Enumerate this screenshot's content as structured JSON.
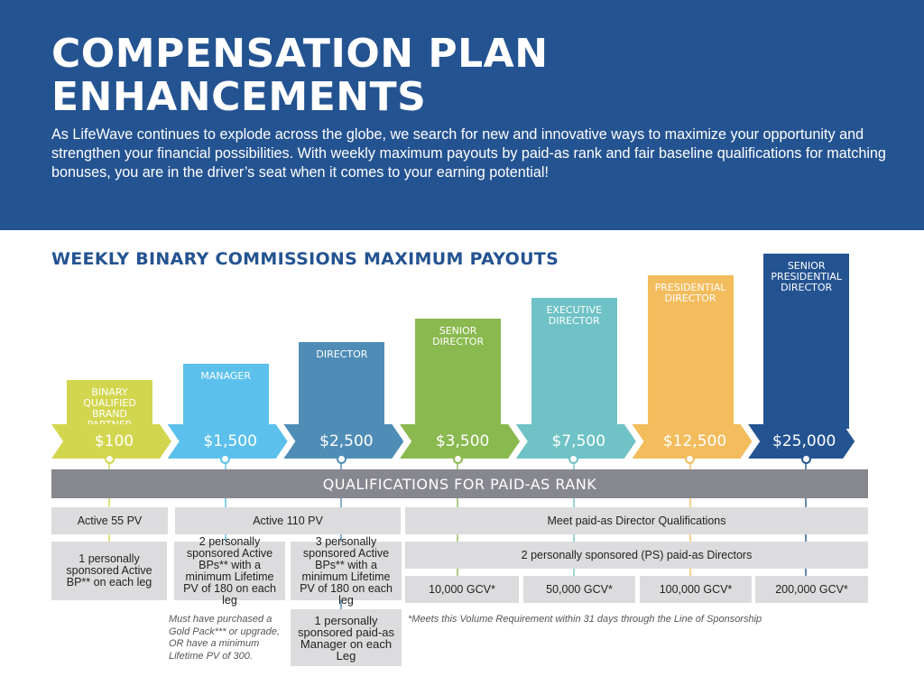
{
  "header": {
    "title_line1": "COMPENSATION PLAN",
    "title_line2": "ENHANCEMENTS",
    "intro": "As LifeWave continues to explode across the globe, we search for new and innovative ways to maximize your opportunity and strengthen your financial possibilities. With weekly maximum payouts by paid-as rank and fair baseline qualifications for matching bonuses, you are in the driver’s seat when it comes to your earning potential!"
  },
  "section_title": "WEEKLY BINARY COMMISSIONS MAXIMUM PAYOUTS",
  "ranks": [
    {
      "name": "BINARY QUALIFIED BRAND PARTNER",
      "payout": "$100",
      "color": "#d2d64e"
    },
    {
      "name": "MANAGER",
      "payout": "$1,500",
      "color": "#5bc0ec"
    },
    {
      "name": "DIRECTOR",
      "payout": "$2,500",
      "color": "#4f8db7"
    },
    {
      "name": "SENIOR DIRECTOR",
      "payout": "$3,500",
      "color": "#8ab94f"
    },
    {
      "name": "EXECUTIVE DIRECTOR",
      "payout": "$7,500",
      "color": "#6fc2c5"
    },
    {
      "name": "PRESIDENTIAL DIRECTOR",
      "payout": "$12,500",
      "color": "#f3bc5c"
    },
    {
      "name": "SENIOR PRESIDENTIAL DIRECTOR",
      "payout": "$25,000",
      "color": "#245391"
    }
  ],
  "qualifications": {
    "title": "QUALIFICATIONS FOR PAID-AS RANK",
    "active55": "Active 55 PV",
    "active110": "Active 110 PV",
    "meet_director": "Meet paid-as Director Qualifications",
    "bqbp_req": "1 personally sponsored Active BP** on each leg",
    "manager_req": "2 personally sponsored Active BPs** with a minimum Lifetime PV of 180 on each leg",
    "director_req": "3 personally sponsored Active BPs** with a minimum Lifetime PV of 180 on each leg",
    "ps_directors": "2 personally sponsored (PS) paid-as Directors",
    "gcv": [
      "10,000 GCV*",
      "50,000 GCV*",
      "100,000 GCV*",
      "200,000 GCV*"
    ],
    "director_manager_req": "1 personally sponsored paid-as Manager on each Leg",
    "manager_note": "Must have purchased a Gold Pack*** or upgrade, OR have a minimum Lifetime PV of 300.",
    "gcv_note": "*Meets this Volume Requirement within 31 days through the Line of Sponsorship"
  }
}
